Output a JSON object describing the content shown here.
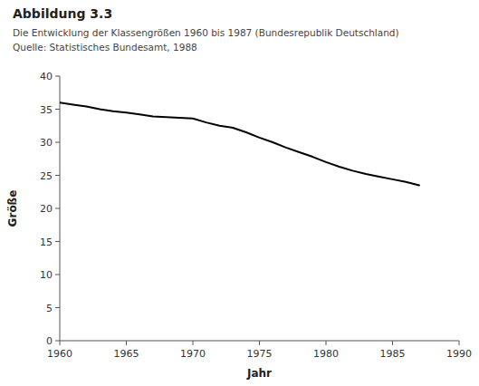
{
  "chart_data": {
    "type": "line",
    "title": "Abbildung 3.3",
    "subtitle": [
      "Die Entwicklung der Klassengrößen 1960 bis 1987 (Bundesrepublik Deutschland)",
      "Quelle: Statistisches Bundesamt, 1988"
    ],
    "xlabel": "Jahr",
    "ylabel": "Größe",
    "x": [
      1960,
      1961,
      1962,
      1963,
      1964,
      1965,
      1966,
      1967,
      1968,
      1969,
      1970,
      1971,
      1972,
      1973,
      1974,
      1975,
      1976,
      1977,
      1978,
      1979,
      1980,
      1981,
      1982,
      1983,
      1984,
      1985,
      1986,
      1987
    ],
    "values": [
      36.0,
      35.7,
      35.4,
      35.0,
      34.7,
      34.5,
      34.2,
      33.9,
      33.8,
      33.7,
      33.6,
      33.0,
      32.5,
      32.2,
      31.5,
      30.7,
      30.0,
      29.2,
      28.5,
      27.8,
      27.0,
      26.3,
      25.7,
      25.2,
      24.8,
      24.4,
      24.0,
      23.5
    ],
    "xlim": [
      1960,
      1990
    ],
    "ylim": [
      0,
      40
    ],
    "xticks": [
      1960,
      1965,
      1970,
      1975,
      1980,
      1985,
      1990
    ],
    "yticks": [
      0,
      5,
      10,
      15,
      20,
      25,
      30,
      35,
      40
    ],
    "color": "#000000",
    "grid": false
  }
}
